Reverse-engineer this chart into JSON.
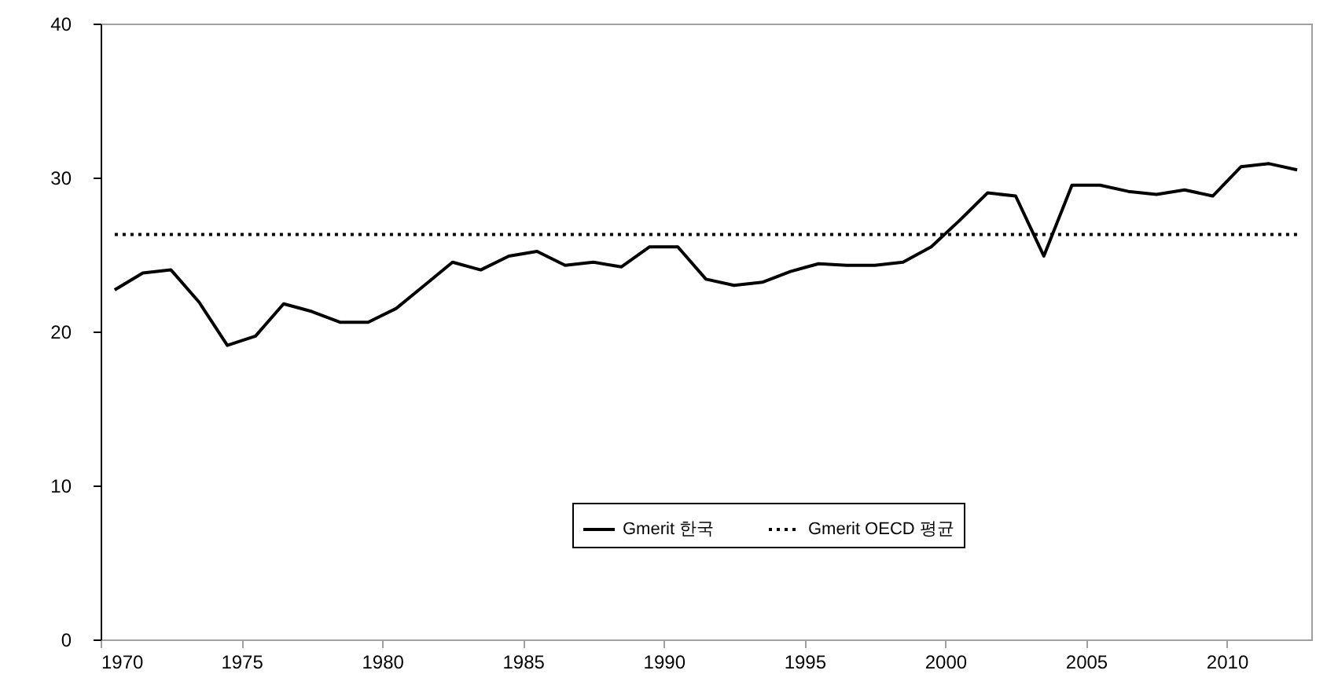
{
  "chart_data": {
    "type": "line",
    "x": [
      1970.5,
      1971.5,
      1972.5,
      1973.5,
      1974.5,
      1975.5,
      1976.5,
      1977.5,
      1978.5,
      1979.5,
      1980.5,
      1981.5,
      1982.5,
      1983.5,
      1984.5,
      1985.5,
      1986.5,
      1987.5,
      1988.5,
      1989.5,
      1990.5,
      1991.5,
      1992.5,
      1993.5,
      1994.5,
      1995.5,
      1996.5,
      1997.5,
      1998.5,
      1999.5,
      2000.5,
      2001.5,
      2002.5,
      2003.5,
      2004.5,
      2005.5,
      2006.5,
      2007.5,
      2008.5,
      2009.5,
      2010.5,
      2011.5,
      2012.5
    ],
    "series": [
      {
        "name": "Gmerit 한국",
        "color": "#000000",
        "line_style": "solid",
        "values": [
          22.7,
          23.8,
          24.0,
          21.9,
          19.1,
          19.7,
          21.8,
          21.3,
          20.6,
          20.6,
          21.5,
          23.0,
          24.5,
          24.0,
          24.9,
          25.2,
          24.3,
          24.5,
          24.2,
          25.5,
          25.5,
          23.4,
          23.0,
          23.2,
          23.9,
          24.4,
          24.3,
          24.3,
          24.5,
          25.5,
          27.2,
          29.0,
          28.8,
          24.9,
          29.5,
          29.5,
          29.1,
          28.9,
          29.2,
          28.8,
          30.7,
          30.9,
          30.5
        ]
      },
      {
        "name": "Gmerit OECD 평균",
        "color": "#000000",
        "line_style": "dotted",
        "values": [
          26.3,
          26.3,
          26.3,
          26.3,
          26.3,
          26.3,
          26.3,
          26.3,
          26.3,
          26.3,
          26.3,
          26.3,
          26.3,
          26.3,
          26.3,
          26.3,
          26.3,
          26.3,
          26.3,
          26.3,
          26.3,
          26.3,
          26.3,
          26.3,
          26.3,
          26.3,
          26.3,
          26.3,
          26.3,
          26.3,
          26.3,
          26.3,
          26.3,
          26.3,
          26.3,
          26.3,
          26.3,
          26.3,
          26.3,
          26.3,
          26.3,
          26.3,
          26.3
        ]
      }
    ],
    "xlim": [
      1970,
      2013
    ],
    "xticks": [
      1970,
      1975,
      1980,
      1985,
      1990,
      1995,
      2000,
      2005,
      2010
    ],
    "ylim": [
      0,
      40
    ],
    "yticks": [
      0,
      10,
      20,
      30,
      40
    ],
    "grid": false,
    "legend": "bottom",
    "marker": "none"
  }
}
